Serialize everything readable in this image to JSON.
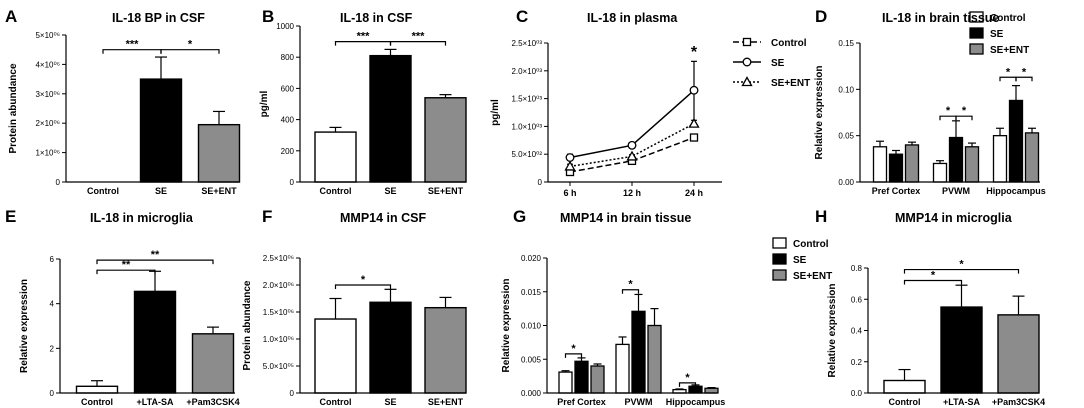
{
  "colors": {
    "control": "#ffffff",
    "se": "#000000",
    "ent": "#8c8c8c",
    "axis": "#000000"
  },
  "chart_data": [
    {
      "id": "A",
      "letter": "A",
      "type": "bar",
      "title": "IL-18 BP in CSF",
      "ylabel": "Protein abundance",
      "xlabel": "",
      "categories": [
        "Control",
        "SE",
        "SE+ENT"
      ],
      "values": [
        0,
        3500000,
        1950000
      ],
      "errors": [
        0,
        750000,
        450000
      ],
      "ylim": [
        0,
        5000000
      ],
      "yticks": [
        0,
        1000000,
        2000000,
        3000000,
        4000000,
        5000000
      ],
      "ytick_labels": [
        "0",
        "1×10⁰⁶",
        "2×10⁰⁶",
        "3×10⁰⁶",
        "4×10⁰⁶",
        "5×10⁰⁶"
      ],
      "sig": [
        {
          "from": 0,
          "to": 1,
          "y": 4500000,
          "label": "***"
        },
        {
          "from": 1,
          "to": 2,
          "y": 4500000,
          "label": "*"
        }
      ]
    },
    {
      "id": "B",
      "letter": "B",
      "type": "bar",
      "title": "IL-18 in CSF",
      "ylabel": "pg/ml",
      "xlabel": "",
      "categories": [
        "Control",
        "SE",
        "SE+ENT"
      ],
      "values": [
        320,
        810,
        540
      ],
      "errors": [
        30,
        40,
        20
      ],
      "ylim": [
        0,
        1000
      ],
      "yticks": [
        0,
        200,
        400,
        600,
        800,
        1000
      ],
      "ytick_labels": [
        "0",
        "200",
        "400",
        "600",
        "800",
        "1000"
      ],
      "sig": [
        {
          "from": 0,
          "to": 1,
          "y": 900,
          "label": "***"
        },
        {
          "from": 1,
          "to": 2,
          "y": 900,
          "label": "***"
        }
      ]
    },
    {
      "id": "C",
      "letter": "C",
      "type": "line",
      "title": "IL-18 in plasma",
      "ylabel": "pg/ml",
      "xlabel": "",
      "categories": [
        "6 h",
        "12 h",
        "24 h"
      ],
      "ylim": [
        0,
        2500
      ],
      "yticks": [
        0,
        500,
        1000,
        1500,
        2000,
        2500
      ],
      "ytick_labels": [
        "0",
        "5.0×10⁰²",
        "1.0×10⁰³",
        "1.5×10⁰³",
        "2.0×10⁰³",
        "2.5×10⁰³"
      ],
      "series": [
        {
          "name": "Control",
          "values": [
            180,
            380,
            800
          ],
          "errors": [
            40,
            30,
            40
          ],
          "marker": "square",
          "dash": "6,3"
        },
        {
          "name": "SE",
          "values": [
            440,
            660,
            1650
          ],
          "errors": [
            60,
            30,
            520
          ],
          "marker": "circle",
          "dash": ""
        },
        {
          "name": "SE+ENT",
          "values": [
            280,
            460,
            1050
          ],
          "errors": [
            40,
            30,
            60
          ],
          "marker": "triangle",
          "dash": "2,2"
        }
      ],
      "annotations": [
        {
          "at": 2,
          "y": 2250,
          "label": "*"
        }
      ]
    },
    {
      "id": "D",
      "letter": "D",
      "type": "bar",
      "title": "IL-18 in brain tissue",
      "ylabel": "Relative expression",
      "xlabel": "",
      "categories": [
        "Pref Cortex",
        "PVWM",
        "Hippocampus"
      ],
      "series": [
        {
          "name": "Control",
          "values": [
            0.038,
            0.02,
            0.05
          ],
          "errors": [
            0.006,
            0.003,
            0.008
          ]
        },
        {
          "name": "SE",
          "values": [
            0.03,
            0.048,
            0.088
          ],
          "errors": [
            0.004,
            0.018,
            0.016
          ]
        },
        {
          "name": "SE+ENT",
          "values": [
            0.04,
            0.038,
            0.053
          ],
          "errors": [
            0.003,
            0.004,
            0.005
          ]
        }
      ],
      "ylim": [
        0,
        0.15
      ],
      "yticks": [
        0,
        0.05,
        0.1,
        0.15
      ],
      "ytick_labels": [
        "0.00",
        "0.05",
        "0.10",
        "0.15"
      ],
      "legend": "outside-top-right",
      "sig": [
        {
          "group": 1,
          "from": 0,
          "to": 1,
          "y": 0.071,
          "label": "*"
        },
        {
          "group": 1,
          "from": 1,
          "to": 2,
          "y": 0.071,
          "label": "*"
        },
        {
          "group": 2,
          "from": 0,
          "to": 1,
          "y": 0.113,
          "label": "*"
        },
        {
          "group": 2,
          "from": 1,
          "to": 2,
          "y": 0.113,
          "label": "*"
        }
      ]
    },
    {
      "id": "E",
      "letter": "E",
      "type": "bar",
      "title": "IL-18 in microglia",
      "ylabel": "Relative expression",
      "xlabel": "",
      "categories": [
        "Control",
        "+LTA-SA",
        "+Pam3CSK4"
      ],
      "values": [
        0.3,
        4.55,
        2.65
      ],
      "errors": [
        0.25,
        0.9,
        0.3
      ],
      "ylim": [
        0,
        6
      ],
      "yticks": [
        0,
        2,
        4,
        6
      ],
      "ytick_labels": [
        "0",
        "2",
        "4",
        "6"
      ],
      "sig": [
        {
          "from": 0,
          "to": 1,
          "y": 5.5,
          "label": "**"
        },
        {
          "from": 0,
          "to": 2,
          "y": 5.95,
          "label": "**"
        }
      ]
    },
    {
      "id": "F",
      "letter": "F",
      "type": "bar",
      "title": "MMP14 in CSF",
      "ylabel": "Protein abundance",
      "xlabel": "",
      "categories": [
        "Control",
        "SE",
        "SE+ENT"
      ],
      "values": [
        1370000,
        1680000,
        1580000
      ],
      "errors": [
        380000,
        240000,
        190000
      ],
      "ylim": [
        0,
        2500000
      ],
      "yticks": [
        0,
        500000,
        1000000,
        1500000,
        2000000,
        2500000
      ],
      "ytick_labels": [
        "0",
        "5.0×10⁰⁵",
        "1.0×10⁰⁶",
        "1.5×10⁰⁶",
        "2.0×10⁰⁶",
        "2.5×10⁰⁶"
      ],
      "sig": [
        {
          "from": 0,
          "to": 1,
          "y": 2000000,
          "label": "*"
        }
      ]
    },
    {
      "id": "G",
      "letter": "G",
      "type": "bar",
      "title": "MMP14 in brain tissue",
      "ylabel": "Relative expression",
      "xlabel": "",
      "categories": [
        "Pref Cortex",
        "PVWM",
        "Hippocampus"
      ],
      "series": [
        {
          "name": "Control",
          "values": [
            0.0031,
            0.0072,
            0.0005
          ],
          "errors": [
            0.0002,
            0.0011,
            0.0001
          ]
        },
        {
          "name": "SE",
          "values": [
            0.0047,
            0.0121,
            0.001
          ],
          "errors": [
            0.0005,
            0.0025,
            0.0002
          ]
        },
        {
          "name": "SE+ENT",
          "values": [
            0.004,
            0.01,
            0.0007
          ],
          "errors": [
            0.0003,
            0.0025,
            0.0001
          ]
        }
      ],
      "ylim": [
        0,
        0.02
      ],
      "yticks": [
        0,
        0.005,
        0.01,
        0.015,
        0.02
      ],
      "ytick_labels": [
        "0.000",
        "0.005",
        "0.010",
        "0.015",
        "0.020"
      ],
      "legend": "inside-top-right",
      "sig": [
        {
          "group": 0,
          "from": 0,
          "to": 1,
          "y": 0.0058,
          "label": "*"
        },
        {
          "group": 1,
          "from": 0,
          "to": 1,
          "y": 0.0153,
          "label": "*"
        },
        {
          "group": 2,
          "from": 0,
          "to": 1,
          "y": 0.0015,
          "label": "*"
        }
      ]
    },
    {
      "id": "H",
      "letter": "H",
      "type": "bar",
      "title": "MMP14 in microglia",
      "ylabel": "Relative expression",
      "xlabel": "",
      "categories": [
        "Control",
        "+LTA-SA",
        "+Pam3CSK4"
      ],
      "values": [
        0.08,
        0.55,
        0.5
      ],
      "errors": [
        0.07,
        0.14,
        0.12
      ],
      "ylim": [
        0,
        0.8
      ],
      "yticks": [
        0,
        0.2,
        0.4,
        0.6,
        0.8
      ],
      "ytick_labels": [
        "0.0",
        "0.2",
        "0.4",
        "0.6",
        "0.8"
      ],
      "sig": [
        {
          "from": 0,
          "to": 1,
          "y": 0.72,
          "label": "*"
        },
        {
          "from": 0,
          "to": 2,
          "y": 0.79,
          "label": "*"
        }
      ]
    }
  ]
}
